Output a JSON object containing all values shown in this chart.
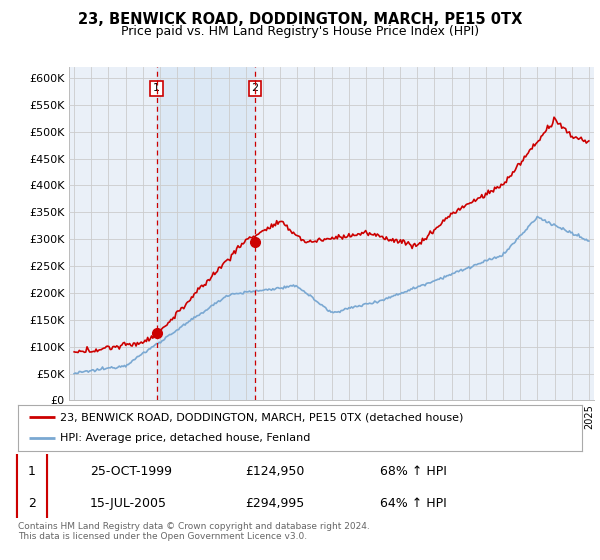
{
  "title": "23, BENWICK ROAD, DODDINGTON, MARCH, PE15 0TX",
  "subtitle": "Price paid vs. HM Land Registry's House Price Index (HPI)",
  "red_label": "23, BENWICK ROAD, DODDINGTON, MARCH, PE15 0TX (detached house)",
  "blue_label": "HPI: Average price, detached house, Fenland",
  "transaction1_date": "25-OCT-1999",
  "transaction1_price": "£124,950",
  "transaction1_hpi": "68% ↑ HPI",
  "transaction2_date": "15-JUL-2005",
  "transaction2_price": "£294,995",
  "transaction2_hpi": "64% ↑ HPI",
  "footnote": "Contains HM Land Registry data © Crown copyright and database right 2024.\nThis data is licensed under the Open Government Licence v3.0.",
  "red_color": "#cc0000",
  "blue_color": "#7aa8d2",
  "shade_color": "#dce8f5",
  "grid_color": "#cccccc",
  "bg_color": "#ffffff",
  "plot_bg_color": "#eaf0f8",
  "ylim": [
    0,
    620000
  ],
  "yticks": [
    0,
    50000,
    100000,
    150000,
    200000,
    250000,
    300000,
    350000,
    400000,
    450000,
    500000,
    550000,
    600000
  ],
  "ytick_labels": [
    "£0",
    "£50K",
    "£100K",
    "£150K",
    "£200K",
    "£250K",
    "£300K",
    "£350K",
    "£400K",
    "£450K",
    "£500K",
    "£550K",
    "£600K"
  ],
  "marker1_x": 1999.81,
  "marker1_y": 124950,
  "marker2_x": 2005.54,
  "marker2_y": 294995,
  "vline1_x": 1999.81,
  "vline2_x": 2005.54,
  "xlim_left": 1994.7,
  "xlim_right": 2025.3
}
